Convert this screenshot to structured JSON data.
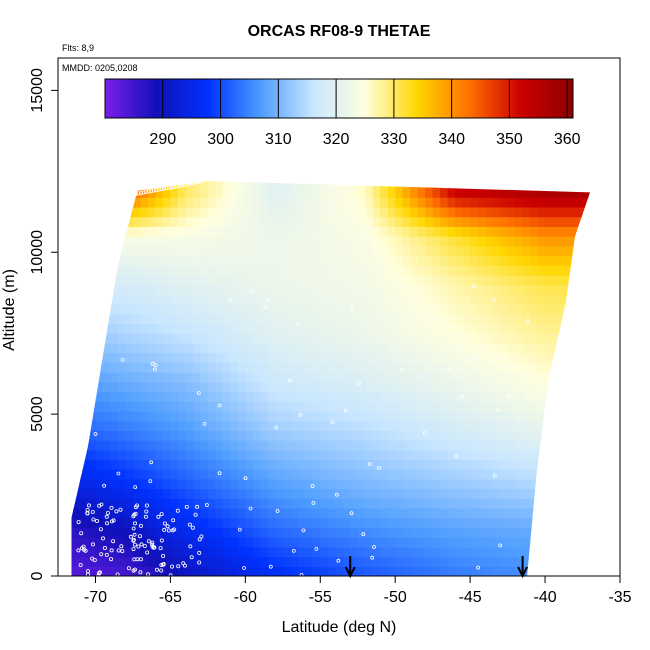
{
  "chart_data": {
    "type": "heatmap",
    "title": "ORCAS RF08-9 THETAE",
    "xlabel": "Latitude (deg N)",
    "ylabel": "Altitude (m)",
    "xlim": [
      -72.5,
      -35
    ],
    "ylim": [
      0,
      16000
    ],
    "x_ticks": [
      -70,
      -65,
      -60,
      -55,
      -50,
      -45,
      -40,
      -35
    ],
    "y_ticks": [
      0,
      5000,
      10000,
      15000
    ],
    "annotations": [
      "Flts: 8,9",
      "MMDD: 0205,0208"
    ],
    "colorbar": {
      "range": [
        280,
        361
      ],
      "ticks": [
        290,
        300,
        310,
        320,
        330,
        340,
        350,
        360
      ],
      "stops": [
        "#7a1fe8",
        "#1010b8",
        "#0033ff",
        "#4f9dff",
        "#c8e6ff",
        "#ffffe0",
        "#ffd700",
        "#ff7000",
        "#cc0000",
        "#8b0000"
      ]
    },
    "markers": [
      {
        "label": "arrow",
        "lat": -53.0
      },
      {
        "label": "arrow",
        "lat": -41.5
      }
    ],
    "field_profile": [
      {
        "lat": -71.5,
        "thetae": [
          283,
          287,
          295,
          302,
          307,
          312,
          318,
          326,
          340
        ]
      },
      {
        "lat": -68.0,
        "thetae": [
          284,
          290,
          298,
          304,
          309,
          314,
          318,
          324,
          345
        ]
      },
      {
        "lat": -64.0,
        "thetae": [
          290,
          296,
          302,
          307,
          311,
          316,
          320,
          324,
          330
        ]
      },
      {
        "lat": -58.0,
        "thetae": [
          297,
          303,
          308,
          313,
          317,
          320,
          322,
          322,
          320
        ]
      },
      {
        "lat": -52.0,
        "thetae": [
          301,
          306,
          311,
          315,
          319,
          322,
          323,
          324,
          326
        ]
      },
      {
        "lat": -46.0,
        "thetae": [
          304,
          308,
          313,
          318,
          322,
          325,
          327,
          332,
          352
        ]
      },
      {
        "lat": -40.0,
        "thetae": [
          306,
          309,
          315,
          321,
          325,
          328,
          331,
          340,
          356
        ]
      }
    ],
    "profile_altitudes": [
      0,
      1500,
      3000,
      4500,
      6000,
      7500,
      9000,
      10500,
      11800
    ]
  }
}
